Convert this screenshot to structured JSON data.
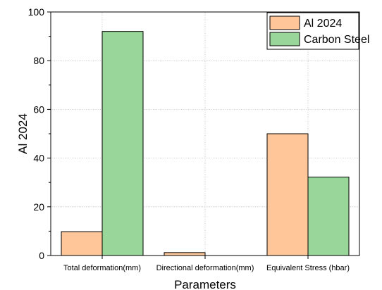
{
  "chart_data": {
    "type": "bar",
    "title": "",
    "xlabel": "Parameters",
    "ylabel": "Al 2024",
    "ylim": [
      0,
      100
    ],
    "yticks": [
      0,
      20,
      40,
      60,
      80,
      100
    ],
    "grid": true,
    "legend_position": "top-right",
    "categories": [
      "Total deformation(mm)",
      "Directional deformation(mm)",
      "Equivalent Stress (hbar)"
    ],
    "series": [
      {
        "name": "Al 2024",
        "color": "#ffc799",
        "values": [
          9.8,
          1.2,
          50
        ]
      },
      {
        "name": "Carbon Steel",
        "color": "#99d699",
        "values": [
          92,
          0,
          32.2
        ]
      }
    ]
  }
}
